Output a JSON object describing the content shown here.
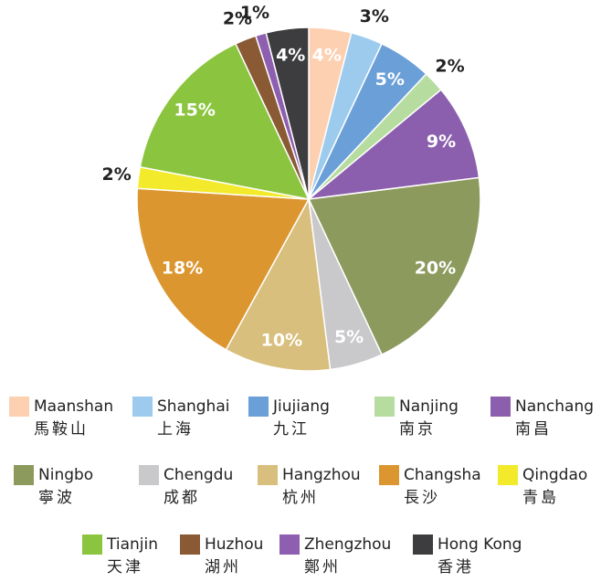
{
  "chart_data": {
    "type": "pie",
    "categories": [
      "Maanshan",
      "Shanghai",
      "Jiujiang",
      "Nanjing",
      "Nanchang",
      "Ningbo",
      "Chengdu",
      "Hangzhou",
      "Changsha",
      "Qingdao",
      "Tianjin",
      "Huzhou",
      "Zhengzhou",
      "Hong Kong"
    ],
    "categories_chinese": [
      "馬鞍山",
      "上海",
      "九江",
      "南京",
      "南昌",
      "寧波",
      "成都",
      "杭州",
      "長沙",
      "青島",
      "天津",
      "湖州",
      "鄭州",
      "香港"
    ],
    "values": [
      4,
      3,
      5,
      2,
      9,
      20,
      5,
      10,
      18,
      2,
      15,
      2,
      1,
      4
    ],
    "value_labels": [
      "4%",
      "3%",
      "5%",
      "2%",
      "9%",
      "20%",
      "5%",
      "10%",
      "18%",
      "2%",
      "15%",
      "2%",
      "1%",
      "4%"
    ],
    "colors": [
      "#fdd0b1",
      "#9dcbee",
      "#6a9fd8",
      "#b6dca0",
      "#8b5fad",
      "#8d9a5e",
      "#c9c9cb",
      "#d9bf7d",
      "#db9630",
      "#f2ea2a",
      "#8bc53f",
      "#8a5a35",
      "#8e5fb0",
      "#3d3d3f"
    ]
  }
}
